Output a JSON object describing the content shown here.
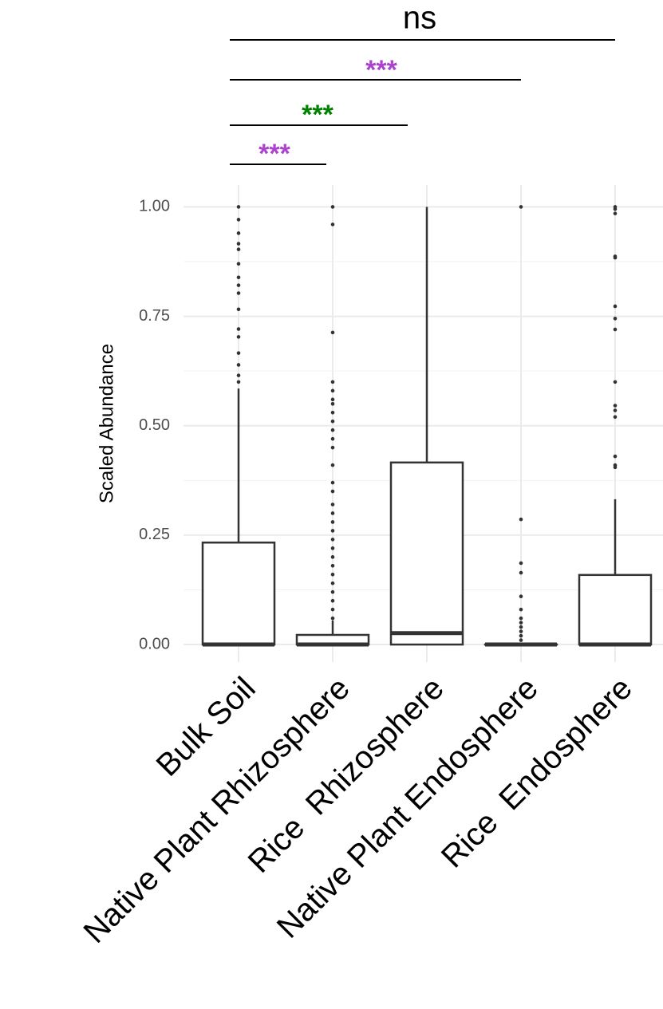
{
  "chart_data": {
    "type": "box",
    "y_label": "Scaled Abundance",
    "categories": [
      "Bulk Soil",
      "Native Plant Rhizosphere",
      "Rice  Rhizosphere",
      "Native Plant Endosphere",
      "Rice  Endosphere"
    ],
    "boxes": [
      {
        "whisker_low": 0,
        "q1": 0,
        "median": 0,
        "q3": 0.233,
        "whisker_high": 0.585,
        "outliers": [
          1.0,
          0.971,
          0.94,
          0.916,
          0.903,
          0.87,
          0.839,
          0.821,
          0.803,
          0.766,
          0.721,
          0.703,
          0.666,
          0.639,
          0.615,
          0.6
        ]
      },
      {
        "whisker_low": 0,
        "q1": 0,
        "median": 0,
        "q3": 0.022,
        "whisker_high": 0.055,
        "outliers": [
          1.0,
          0.96,
          0.713,
          0.6,
          0.58,
          0.56,
          0.55,
          0.53,
          0.51,
          0.49,
          0.47,
          0.45,
          0.41,
          0.37,
          0.35,
          0.32,
          0.3,
          0.28,
          0.26,
          0.24,
          0.22,
          0.2,
          0.18,
          0.16,
          0.14,
          0.12,
          0.1,
          0.08,
          0.06
        ]
      },
      {
        "whisker_low": 0,
        "q1": 0,
        "median": 0.026,
        "q3": 0.416,
        "whisker_high": 1.0,
        "outliers": []
      },
      {
        "whisker_low": 0,
        "q1": 0,
        "median": 0,
        "q3": 0,
        "whisker_high": 0,
        "outliers": [
          1.0,
          0.286,
          0.186,
          0.164,
          0.11,
          0.08,
          0.06,
          0.05,
          0.04,
          0.03,
          0.02,
          0.01
        ]
      },
      {
        "whisker_low": 0,
        "q1": 0,
        "median": 0,
        "q3": 0.159,
        "whisker_high": 0.332,
        "outliers": [
          1.0,
          0.995,
          0.985,
          0.887,
          0.884,
          0.773,
          0.745,
          0.72,
          0.6,
          0.546,
          0.535,
          0.52,
          0.43,
          0.41,
          0.405
        ]
      }
    ],
    "ylim": [
      -0.04,
      1.05
    ],
    "yticks": [
      {
        "value": 0,
        "label": "0.00"
      },
      {
        "value": 0.25,
        "label": "0.25"
      },
      {
        "value": 0.5,
        "label": "0.50"
      },
      {
        "value": 0.75,
        "label": "0.75"
      },
      {
        "value": 1,
        "label": "1.00"
      }
    ],
    "grid": true,
    "color": "#333333",
    "annotations": [
      {
        "text": "ns",
        "color": "#000000"
      },
      {
        "text": "***",
        "color": "#aa44cc"
      },
      {
        "text": "***",
        "color": "#008000"
      },
      {
        "text": "***",
        "color": "#aa44cc"
      }
    ]
  }
}
